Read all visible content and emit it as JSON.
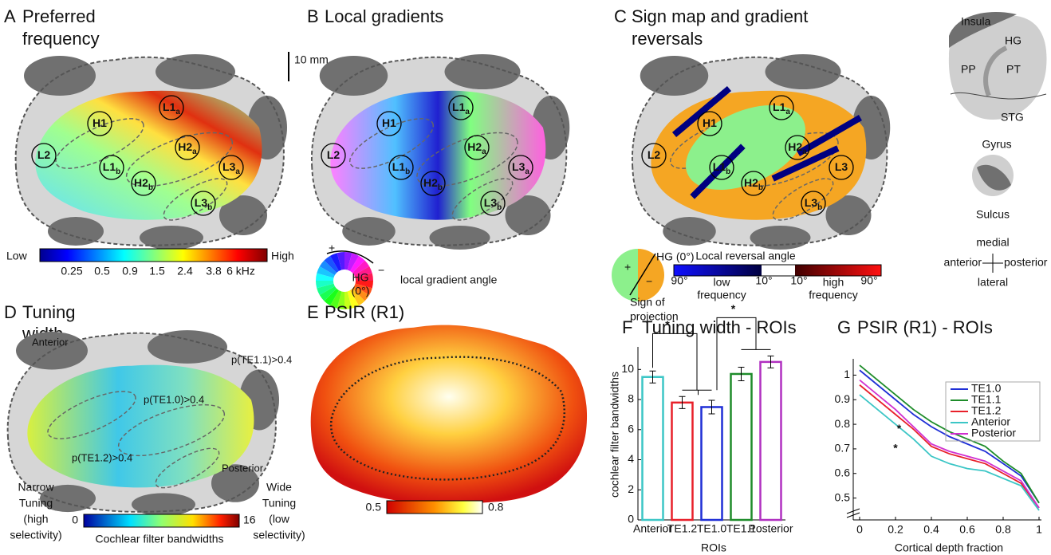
{
  "A": {
    "letter": "A",
    "title": [
      "Preferred",
      "frequency"
    ],
    "regions": [
      {
        "name": "H1"
      },
      {
        "name": "L1",
        "sub": "a"
      },
      {
        "name": "H2",
        "sub": "a"
      },
      {
        "name": "L2"
      },
      {
        "name": "L1",
        "sub": "b"
      },
      {
        "name": "H2",
        "sub": "b"
      },
      {
        "name": "L3",
        "sub": "a"
      },
      {
        "name": "L3",
        "sub": "b"
      }
    ],
    "colorbar": {
      "low": "Low",
      "high": "High",
      "ticks": [
        "0.25",
        "0.5",
        "0.9",
        "1.5",
        "2.4",
        "3.8",
        "6 kHz"
      ]
    }
  },
  "B": {
    "letter": "B",
    "title": [
      "Local gradients"
    ],
    "scale": "10 mm",
    "regions": [
      {
        "name": "H1"
      },
      {
        "name": "L1",
        "sub": "a"
      },
      {
        "name": "H2",
        "sub": "a"
      },
      {
        "name": "L2"
      },
      {
        "name": "L1",
        "sub": "b"
      },
      {
        "name": "H2",
        "sub": "b"
      },
      {
        "name": "L3",
        "sub": "a"
      },
      {
        "name": "L3",
        "sub": "b"
      }
    ],
    "wheel": {
      "plus": "+",
      "minus": "−",
      "hg": [
        "HG",
        "(0°)"
      ]
    },
    "caption": "local gradient angle"
  },
  "C": {
    "letter": "C",
    "title": [
      "Sign map and gradient",
      "reversals"
    ],
    "regions": [
      {
        "name": "H1"
      },
      {
        "name": "L1",
        "sub": "a"
      },
      {
        "name": "H2",
        "sub": "a"
      },
      {
        "name": "L2"
      },
      {
        "name": "L1",
        "sub": "b"
      },
      {
        "name": "H2",
        "sub": "b"
      },
      {
        "name": "L3"
      },
      {
        "name": "L3",
        "sub": "b"
      }
    ],
    "sign": {
      "plus": "+",
      "minus": "−",
      "hg": "HG (0°)",
      "caption": [
        "Sign of",
        "projection"
      ]
    },
    "colorbar": {
      "title": "Local reversal angle",
      "ticks": [
        "90°",
        "10°",
        "10°",
        "90°"
      ],
      "low": [
        "low",
        "frequency"
      ],
      "high": [
        "high",
        "frequency"
      ]
    }
  },
  "anatomy": {
    "insula": "Insula",
    "hg": "HG",
    "pp": "PP",
    "pt": "PT",
    "stg": "STG",
    "gyrus": "Gyrus",
    "sulcus": "Sulcus",
    "orientation": {
      "medial": "medial",
      "anterior": "anterior",
      "posterior": "posterior",
      "lateral": "lateral"
    }
  },
  "D": {
    "letter": "D",
    "title": [
      "Tuning",
      "width"
    ],
    "labels": [
      "Anterior",
      "p(TE1.1)>0.4",
      "p(TE1.0)>0.4",
      "p(TE1.2)>0.4",
      "Posterior"
    ],
    "narrow": [
      "Narrow",
      "Tuning",
      "(high",
      "selectivity)"
    ],
    "wide": [
      "Wide",
      "Tuning",
      "(low",
      "selectivity)"
    ],
    "colorbar": {
      "min": "0",
      "max": "16",
      "title": "Cochlear filter bandwidths"
    }
  },
  "E": {
    "letter": "E",
    "title": [
      "PSIR (R1)"
    ],
    "colorbar": {
      "min": "0.5",
      "max": "0.8"
    }
  },
  "chart_data": [
    {
      "type": "bar",
      "letter": "F",
      "title": "Tuning width - ROIs",
      "y_label": "cochlear filter bandwidths",
      "x_label": "ROIs",
      "categories": [
        "Anterior",
        "TE1.2",
        "TE1.0",
        "TE1.1",
        "Posterior"
      ],
      "values": [
        9.5,
        7.8,
        7.5,
        9.7,
        10.5
      ],
      "errors": [
        0.4,
        0.4,
        0.45,
        0.45,
        0.4
      ],
      "colors": [
        "#3cc6c6",
        "#e8202a",
        "#1f2fd6",
        "#1e8c2a",
        "#b030c0"
      ],
      "ylim": [
        0,
        11.5
      ],
      "yticks": [
        0,
        2,
        4,
        6,
        8,
        10
      ],
      "annotations": [
        "*",
        "*"
      ]
    },
    {
      "type": "line",
      "letter": "G",
      "title": "PSIR (R1) - ROIs",
      "x_label": "Cortical depth fraction",
      "x": [
        0,
        0.1,
        0.2,
        0.3,
        0.4,
        0.5,
        0.6,
        0.7,
        0.8,
        0.9,
        1
      ],
      "series": [
        {
          "name": "TE1.0",
          "color": "#1f2fd6",
          "values": [
            1.02,
            0.96,
            0.9,
            0.84,
            0.79,
            0.75,
            0.72,
            0.69,
            0.64,
            0.59,
            0.48
          ]
        },
        {
          "name": "TE1.1",
          "color": "#1e8c2a",
          "values": [
            1.04,
            0.98,
            0.92,
            0.86,
            0.81,
            0.77,
            0.74,
            0.71,
            0.65,
            0.6,
            0.48
          ]
        },
        {
          "name": "TE1.2",
          "color": "#e8202a",
          "values": [
            0.96,
            0.9,
            0.84,
            0.78,
            0.71,
            0.68,
            0.66,
            0.64,
            0.6,
            0.56,
            0.46
          ]
        },
        {
          "name": "Anterior",
          "color": "#3cc6c6",
          "values": [
            0.92,
            0.86,
            0.8,
            0.74,
            0.67,
            0.64,
            0.62,
            0.61,
            0.58,
            0.55,
            0.45
          ]
        },
        {
          "name": "Posterior",
          "color": "#d030d0",
          "values": [
            0.98,
            0.92,
            0.86,
            0.79,
            0.72,
            0.69,
            0.67,
            0.65,
            0.61,
            0.57,
            0.46
          ]
        }
      ],
      "xlim": [
        0,
        1
      ],
      "xticks": [
        0,
        0.2,
        0.4,
        0.6,
        0.8,
        1
      ],
      "ylim": [
        0.45,
        1.05
      ],
      "yticks": [
        0.5,
        0.6,
        0.7,
        0.8,
        0.9,
        1
      ],
      "annotations": [
        "*",
        "*"
      ]
    }
  ]
}
